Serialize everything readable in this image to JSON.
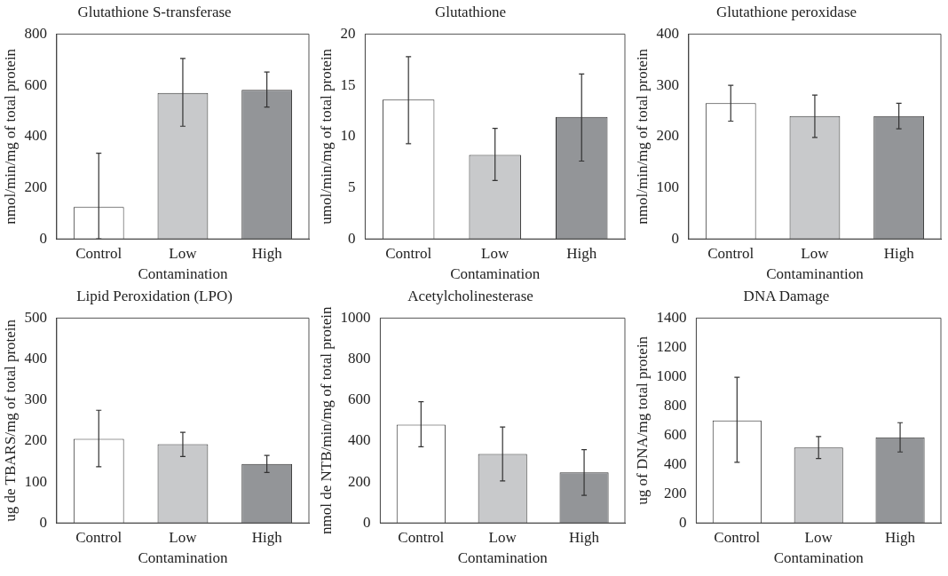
{
  "chart_data": [
    {
      "type": "bar",
      "title": "Glutathione S-transferase",
      "xlabel": "Contamination",
      "ylabel": "nmol/min/mg of total protein",
      "categories": [
        "Control",
        "Low",
        "High"
      ],
      "values": [
        125,
        570,
        582
      ],
      "errors": [
        [
          0,
          335
        ],
        [
          440,
          705
        ],
        [
          515,
          652
        ]
      ],
      "colors": [
        "#ffffff",
        "#c8c9cb",
        "#939598"
      ],
      "ylim": [
        0,
        800
      ],
      "yticks": [
        0,
        200,
        400,
        600,
        800
      ],
      "grid": false,
      "legend": false
    },
    {
      "type": "bar",
      "title": "Glutathione",
      "xlabel": "Contamination",
      "ylabel": "umol/min/mg of total protein",
      "categories": [
        "Control",
        "Low",
        "High"
      ],
      "values": [
        13.6,
        8.2,
        11.9
      ],
      "errors": [
        [
          9.3,
          17.8
        ],
        [
          5.7,
          10.8
        ],
        [
          7.6,
          16.1
        ]
      ],
      "colors": [
        "#ffffff",
        "#c8c9cb",
        "#939598"
      ],
      "ylim": [
        0,
        20
      ],
      "yticks": [
        0,
        5,
        10,
        15,
        20
      ],
      "grid": false,
      "legend": false
    },
    {
      "type": "bar",
      "title": "Glutathione peroxidase",
      "xlabel": "Contaminantion",
      "ylabel": "nmol/min/mg of total protein",
      "categories": [
        "Control",
        "Low",
        "High"
      ],
      "values": [
        265,
        240,
        240
      ],
      "errors": [
        [
          230,
          300
        ],
        [
          198,
          281
        ],
        [
          215,
          265
        ]
      ],
      "colors": [
        "#ffffff",
        "#c8c9cb",
        "#939598"
      ],
      "ylim": [
        0,
        400
      ],
      "yticks": [
        0,
        100,
        200,
        300,
        400
      ],
      "grid": false,
      "legend": false
    },
    {
      "type": "bar",
      "title": "Lipid Peroxidation (LPO)",
      "xlabel": "Contamination",
      "ylabel": "ug de TBARS/mg of total protein",
      "categories": [
        "Control",
        "Low",
        "High"
      ],
      "values": [
        205,
        192,
        144
      ],
      "errors": [
        [
          137,
          275
        ],
        [
          162,
          221
        ],
        [
          123,
          165
        ]
      ],
      "colors": [
        "#ffffff",
        "#c8c9cb",
        "#939598"
      ],
      "ylim": [
        0,
        500
      ],
      "yticks": [
        0,
        100,
        200,
        300,
        400,
        500
      ],
      "grid": false,
      "legend": false
    },
    {
      "type": "bar",
      "title": "Acetylcholinesterase",
      "xlabel": "Contamination",
      "ylabel": "nmol de NTB/min/mg of total protein",
      "categories": [
        "Control",
        "Low",
        "High"
      ],
      "values": [
        480,
        337,
        247
      ],
      "errors": [
        [
          372,
          592
        ],
        [
          205,
          468
        ],
        [
          135,
          358
        ]
      ],
      "colors": [
        "#ffffff",
        "#c8c9cb",
        "#939598"
      ],
      "ylim": [
        0,
        1000
      ],
      "yticks": [
        0,
        200,
        400,
        600,
        800,
        1000
      ],
      "grid": false,
      "legend": false
    },
    {
      "type": "bar",
      "title": "DNA Damage",
      "xlabel": "Contamination",
      "ylabel": "ug of DNA/mg total protein",
      "categories": [
        "Control",
        "Low",
        "High"
      ],
      "values": [
        700,
        515,
        585
      ],
      "errors": [
        [
          415,
          995
        ],
        [
          440,
          590
        ],
        [
          485,
          685
        ]
      ],
      "colors": [
        "#ffffff",
        "#c8c9cb",
        "#939598"
      ],
      "ylim": [
        0,
        1400
      ],
      "yticks": [
        0,
        200,
        400,
        600,
        800,
        1000,
        1200,
        1400
      ],
      "grid": false,
      "legend": false
    }
  ]
}
